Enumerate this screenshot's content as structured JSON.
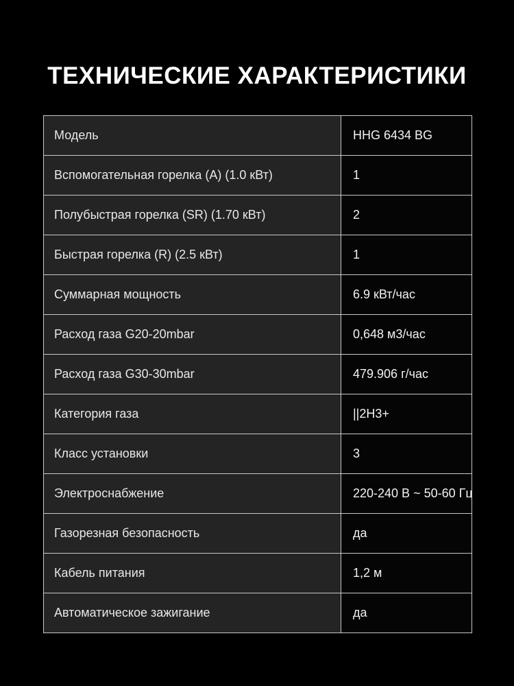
{
  "title": "ТЕХНИЧЕСКИЕ ХАРАКТЕРИСТИКИ",
  "colors": {
    "background": "#000000",
    "title_text": "#ffffff",
    "label_cell_bg": "#242424",
    "value_cell_bg": "#050505",
    "label_text": "#e8e8e8",
    "value_text": "#f2f2f2",
    "border": "#c9c9c9"
  },
  "table": {
    "rows": [
      {
        "label": "Модель",
        "value": "HHG 6434 BG"
      },
      {
        "label": "Вспомогательная горелка (А) (1.0 кВт)",
        "value": "1"
      },
      {
        "label": "Полубыстрая горелка (SR) (1.70 кВт)",
        "value": "2"
      },
      {
        "label": "Быстрая горелка (R) (2.5 кВт)",
        "value": "1"
      },
      {
        "label": "Суммарная мощность",
        "value": "6.9 кВт/час"
      },
      {
        "label": "Расход газа G20-20mbar",
        "value": "0,648 м3/час"
      },
      {
        "label": "Расход газа G30-30mbar",
        "value": "479.906 г/час"
      },
      {
        "label": "Категория газа",
        "value": "||2H3+"
      },
      {
        "label": "Класс установки",
        "value": "3"
      },
      {
        "label": "Электроснабжение",
        "value": "220-240 В ~ 50-60 Гц"
      },
      {
        "label": "Газорезная безопасность",
        "value": "да"
      },
      {
        "label": "Кабель питания",
        "value": "1,2 м"
      },
      {
        "label": "Автоматическое зажигание",
        "value": "да"
      }
    ]
  }
}
